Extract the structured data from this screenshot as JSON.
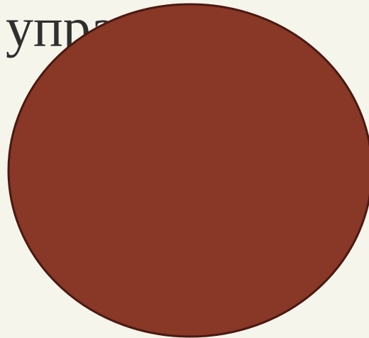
{
  "heading": {
    "text": "управление"
  },
  "shape": {
    "fill": "#893727",
    "stroke": "#4a1a10"
  }
}
